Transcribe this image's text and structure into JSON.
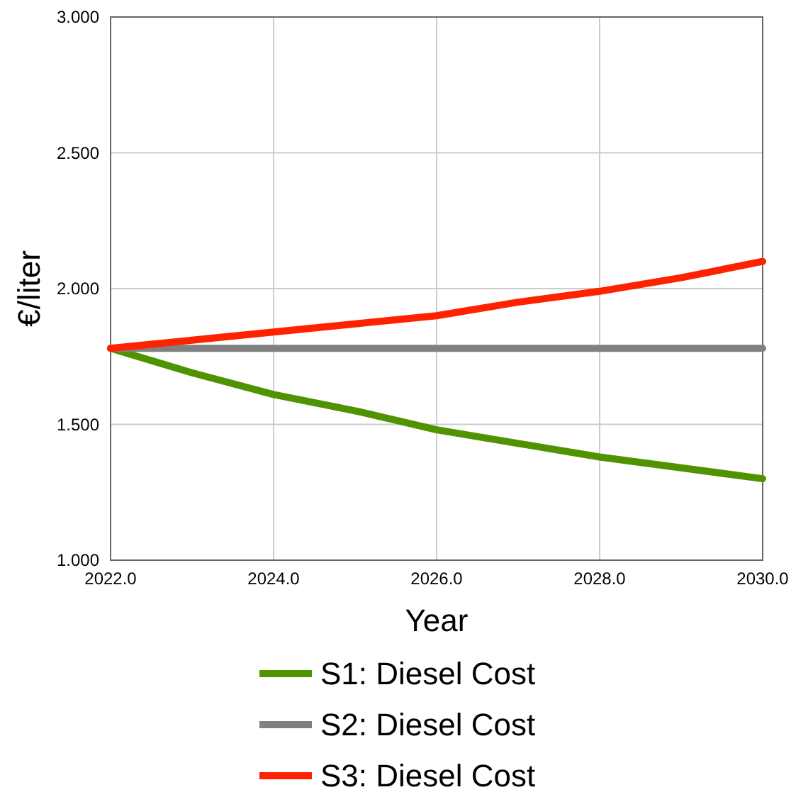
{
  "chart_data": {
    "type": "line",
    "xlabel": "Year",
    "ylabel": "€/liter",
    "x": [
      2022,
      2023,
      2024,
      2025,
      2026,
      2027,
      2028,
      2029,
      2030
    ],
    "xlim": [
      2022,
      2030
    ],
    "xticks": [
      {
        "value": 2022,
        "label": "2022.0"
      },
      {
        "value": 2024,
        "label": "2024.0"
      },
      {
        "value": 2026,
        "label": "2026.0"
      },
      {
        "value": 2028,
        "label": "2028.0"
      },
      {
        "value": 2030,
        "label": "2030.0"
      }
    ],
    "ylim": [
      1,
      3
    ],
    "yticks": [
      {
        "value": 1,
        "label": "1.000"
      },
      {
        "value": 1.5,
        "label": "1.500"
      },
      {
        "value": 2,
        "label": "2.000"
      },
      {
        "value": 2.5,
        "label": "2.500"
      },
      {
        "value": 3,
        "label": "3.000"
      }
    ],
    "grid": true,
    "legend": "bottom",
    "marker": "none",
    "line_style": "solid",
    "series": [
      {
        "name": "S1: Diesel Cost",
        "color": "#4f9400",
        "values": [
          1.78,
          1.69,
          1.61,
          1.55,
          1.48,
          1.43,
          1.38,
          1.34,
          1.3
        ]
      },
      {
        "name": "S2: Diesel Cost",
        "color": "#808080",
        "values": [
          1.78,
          1.78,
          1.78,
          1.78,
          1.78,
          1.78,
          1.78,
          1.78,
          1.78
        ]
      },
      {
        "name": "S3: Diesel Cost",
        "color": "#ff2200",
        "values": [
          1.78,
          1.81,
          1.84,
          1.87,
          1.9,
          1.95,
          1.99,
          2.04,
          2.1
        ]
      }
    ]
  }
}
